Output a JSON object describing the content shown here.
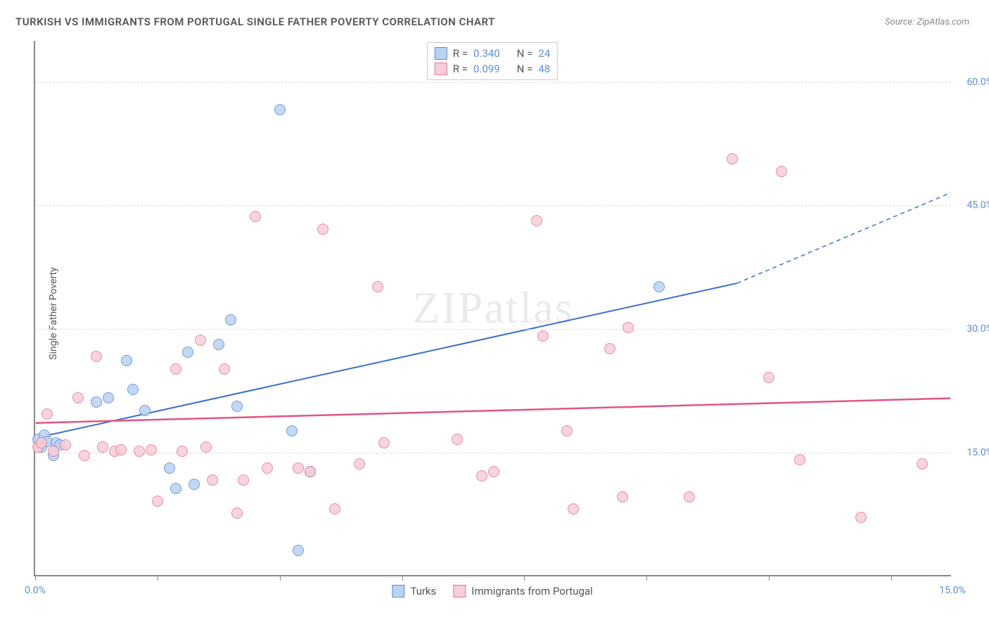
{
  "title": "TURKISH VS IMMIGRANTS FROM PORTUGAL SINGLE FATHER POVERTY CORRELATION CHART",
  "source_prefix": "Source: ",
  "source_name": "ZipAtlas.com",
  "y_axis_label": "Single Father Poverty",
  "watermark": "ZIPatlas",
  "chart": {
    "type": "scatter",
    "xlim": [
      0,
      15
    ],
    "ylim": [
      0,
      65
    ],
    "x_ticks": [
      0,
      2,
      4,
      6,
      8,
      10,
      12,
      14
    ],
    "x_tick_labels": {
      "0": "0.0%",
      "15": "15.0%"
    },
    "y_ticks": [
      15,
      30,
      45,
      60
    ],
    "y_tick_labels": [
      "15.0%",
      "30.0%",
      "45.0%",
      "60.0%"
    ],
    "grid_color": "#dddddd",
    "axis_color": "#888888",
    "background": "#ffffff",
    "point_radius": 8,
    "series": [
      {
        "name": "Turks",
        "fill": "#b9d2f0",
        "stroke": "#5b8fd6",
        "r_label": "R = ",
        "r_value": "0.340",
        "n_label": "N = ",
        "n_value": "24",
        "trend": {
          "x1": 0.2,
          "y1": 17.0,
          "x2": 11.5,
          "y2": 35.5,
          "dash_to_x": 15.0,
          "dash_to_y": 46.5,
          "color": "#3b6fc9",
          "width": 2
        },
        "points": [
          [
            0.05,
            16.5
          ],
          [
            0.1,
            15.5
          ],
          [
            0.15,
            17.0
          ],
          [
            0.2,
            16.2
          ],
          [
            0.3,
            14.5
          ],
          [
            0.35,
            16.0
          ],
          [
            0.4,
            15.8
          ],
          [
            1.0,
            21.0
          ],
          [
            1.2,
            21.5
          ],
          [
            1.5,
            26.0
          ],
          [
            1.6,
            22.5
          ],
          [
            1.8,
            20.0
          ],
          [
            2.2,
            13.0
          ],
          [
            2.3,
            10.5
          ],
          [
            2.5,
            27.0
          ],
          [
            2.6,
            11.0
          ],
          [
            3.0,
            28.0
          ],
          [
            3.2,
            31.0
          ],
          [
            3.3,
            20.5
          ],
          [
            4.0,
            56.5
          ],
          [
            4.2,
            17.5
          ],
          [
            4.3,
            3.0
          ],
          [
            4.5,
            12.5
          ],
          [
            10.2,
            35.0
          ]
        ]
      },
      {
        "name": "Immigrants from Portugal",
        "fill": "#f7cdd8",
        "stroke": "#e47a9a",
        "r_label": "R = ",
        "r_value": "0.099",
        "n_label": "N = ",
        "n_value": "48",
        "trend": {
          "x1": 0,
          "y1": 18.5,
          "x2": 15.0,
          "y2": 21.5,
          "color": "#e25584",
          "width": 2.5
        },
        "points": [
          [
            0.05,
            15.5
          ],
          [
            0.1,
            16.0
          ],
          [
            0.2,
            19.5
          ],
          [
            0.3,
            15.0
          ],
          [
            0.5,
            15.8
          ],
          [
            0.7,
            21.5
          ],
          [
            0.8,
            14.5
          ],
          [
            1.0,
            26.5
          ],
          [
            1.1,
            15.5
          ],
          [
            1.3,
            15.0
          ],
          [
            1.4,
            15.2
          ],
          [
            1.7,
            15.0
          ],
          [
            1.9,
            15.2
          ],
          [
            2.0,
            9.0
          ],
          [
            2.3,
            25.0
          ],
          [
            2.4,
            15.0
          ],
          [
            2.7,
            28.5
          ],
          [
            2.8,
            15.5
          ],
          [
            2.9,
            11.5
          ],
          [
            3.1,
            25.0
          ],
          [
            3.3,
            7.5
          ],
          [
            3.4,
            11.5
          ],
          [
            3.6,
            43.5
          ],
          [
            3.8,
            13.0
          ],
          [
            4.3,
            13.0
          ],
          [
            4.5,
            12.5
          ],
          [
            4.7,
            42.0
          ],
          [
            4.9,
            8.0
          ],
          [
            5.3,
            13.5
          ],
          [
            5.6,
            35.0
          ],
          [
            5.7,
            16.0
          ],
          [
            6.9,
            16.5
          ],
          [
            7.3,
            12.0
          ],
          [
            7.5,
            12.5
          ],
          [
            8.2,
            43.0
          ],
          [
            8.3,
            29.0
          ],
          [
            8.7,
            17.5
          ],
          [
            8.8,
            8.0
          ],
          [
            9.4,
            27.5
          ],
          [
            9.6,
            9.5
          ],
          [
            9.7,
            30.0
          ],
          [
            10.7,
            9.5
          ],
          [
            11.4,
            50.5
          ],
          [
            12.0,
            24.0
          ],
          [
            12.2,
            49.0
          ],
          [
            12.5,
            14.0
          ],
          [
            13.5,
            7.0
          ],
          [
            14.5,
            13.5
          ]
        ]
      }
    ]
  },
  "legend_bottom": [
    {
      "label": "Turks",
      "fill": "#b9d2f0",
      "stroke": "#5b8fd6"
    },
    {
      "label": "Immigrants from Portugal",
      "fill": "#f7cdd8",
      "stroke": "#e47a9a"
    }
  ]
}
